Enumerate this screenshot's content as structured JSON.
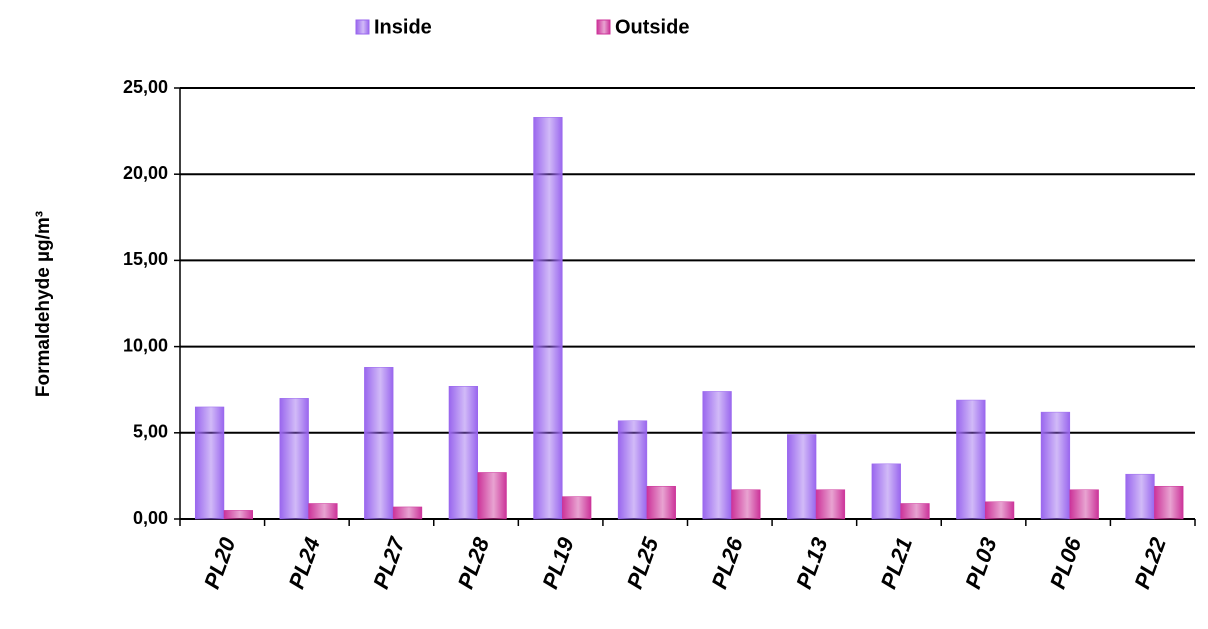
{
  "chart_data": {
    "type": "bar",
    "y_axis_label": "Formaldehyde µg/m³",
    "categories": [
      "PL20",
      "PL24",
      "PL27",
      "PL28",
      "PL19",
      "PL25",
      "PL26",
      "PL13",
      "PL21",
      "PL03",
      "PL06",
      "PL22"
    ],
    "series": [
      {
        "name": "Inside",
        "color": "#9966ee",
        "values": [
          6.5,
          7.0,
          8.8,
          7.7,
          23.3,
          5.7,
          7.4,
          4.9,
          3.2,
          6.9,
          6.2,
          2.6
        ]
      },
      {
        "name": "Outside",
        "color": "#cc3399",
        "values": [
          0.5,
          0.9,
          0.7,
          2.7,
          1.3,
          1.9,
          1.7,
          1.7,
          0.9,
          1.0,
          1.7,
          1.9
        ]
      }
    ],
    "ylim": [
      0,
      25
    ],
    "yticks": [
      {
        "value": 0,
        "label": "0,00"
      },
      {
        "value": 5,
        "label": "5,00"
      },
      {
        "value": 10,
        "label": "10,00"
      },
      {
        "value": 15,
        "label": "15,00"
      },
      {
        "value": 20,
        "label": "20,00"
      },
      {
        "value": 25,
        "label": "25,00"
      }
    ],
    "grid": true,
    "legend": "top"
  }
}
